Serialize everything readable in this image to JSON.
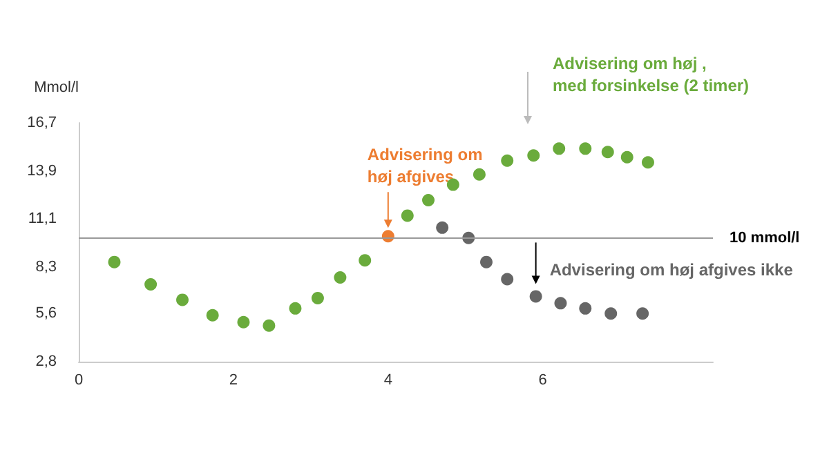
{
  "chart_data": {
    "type": "scatter",
    "ylabel": "Mmol/l",
    "xlim": [
      0,
      8.2
    ],
    "xticks": [
      0,
      2,
      4,
      6
    ],
    "ylim": [
      2.8,
      16.7
    ],
    "yticks": [
      {
        "value": 2.8,
        "label": "2,8"
      },
      {
        "value": 5.6,
        "label": "5,6"
      },
      {
        "value": 8.3,
        "label": "8,3"
      },
      {
        "value": 11.1,
        "label": "11,1"
      },
      {
        "value": 13.9,
        "label": "13,9"
      },
      {
        "value": 16.7,
        "label": "16,7"
      }
    ],
    "grid": false,
    "marker": "circle",
    "series": [
      {
        "color": "#6aab3c",
        "x": [
          0.46,
          0.93,
          1.34,
          1.73,
          2.13,
          2.46,
          2.8,
          3.09,
          3.38,
          3.7,
          4.25,
          4.52,
          4.84,
          5.18,
          5.54,
          5.88,
          6.21,
          6.55,
          6.84,
          7.09,
          7.36
        ],
        "values": [
          8.6,
          7.3,
          6.4,
          5.5,
          5.1,
          4.9,
          5.9,
          6.5,
          7.7,
          8.7,
          11.3,
          12.2,
          13.1,
          13.7,
          14.5,
          14.8,
          15.2,
          15.2,
          15.0,
          14.7,
          14.4
        ]
      },
      {
        "color": "#ed7d31",
        "x": [
          4.0
        ],
        "values": [
          10.1
        ]
      },
      {
        "color": "#666666",
        "x": [
          4.7,
          5.04,
          5.27,
          5.54,
          5.91,
          6.23,
          6.55,
          6.88,
          7.29
        ],
        "values": [
          10.6,
          10.0,
          8.6,
          7.6,
          6.6,
          6.2,
          5.9,
          5.6,
          5.6
        ]
      }
    ],
    "ref_lines": [
      {
        "axis": "y",
        "value": 10,
        "label": "10 mmol/l",
        "color": "#999999"
      }
    ],
    "annotations": [
      "Advisering om høj ,\nmed forsinkelse (2 timer)",
      {
        "text": "Advisering om\nhøj afgives",
        "x": 4.0,
        "y": 10.1
      },
      {
        "text": "Advisering om høj afgives ikke",
        "x": 5.91,
        "y": 6.6
      }
    ]
  }
}
